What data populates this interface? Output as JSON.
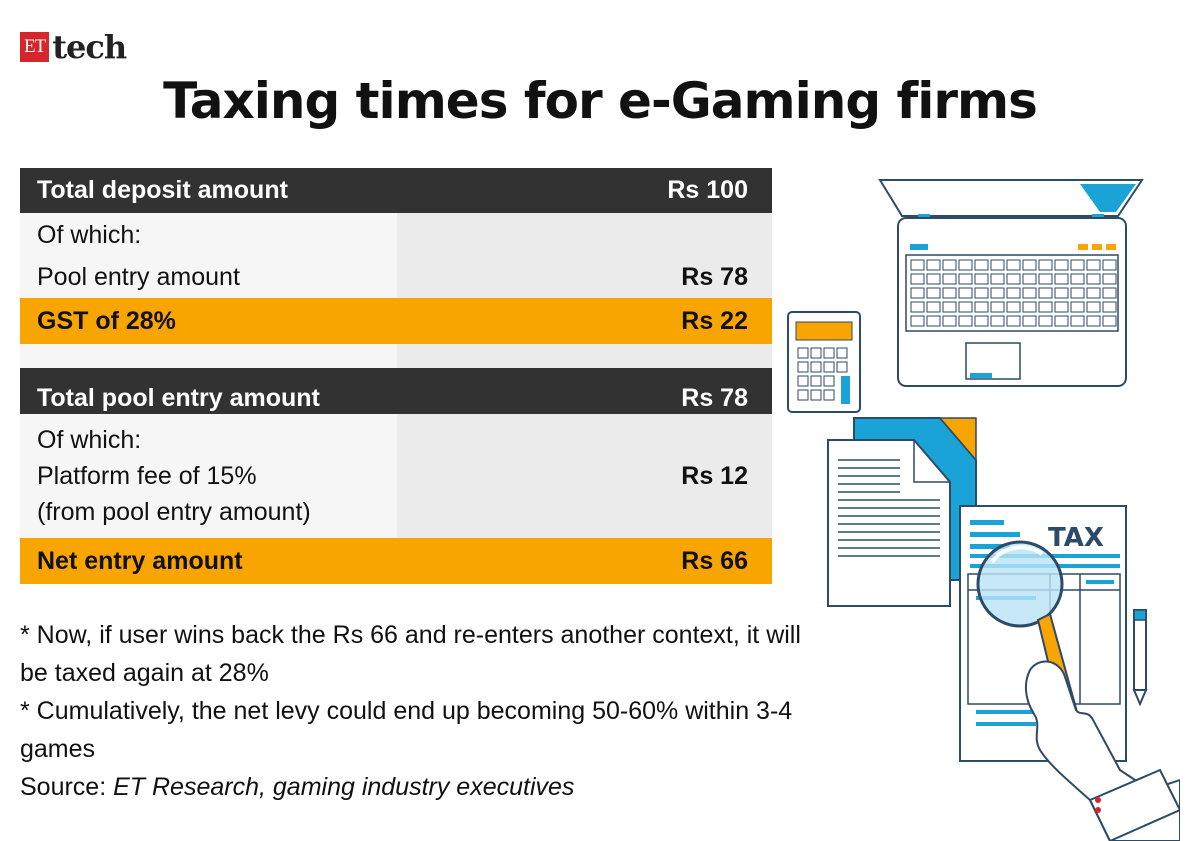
{
  "brand": {
    "prefix": "ET",
    "name": "tech"
  },
  "title": "Taxing times for e-Gaming firms",
  "table1": {
    "header": {
      "label": "Total deposit amount",
      "value": "Rs 100"
    },
    "of_which": "Of which:",
    "pool": {
      "label": "Pool entry amount",
      "value": "Rs 78"
    },
    "gst": {
      "label": "GST of 28%",
      "value": "Rs 22"
    }
  },
  "table2": {
    "header": {
      "label": "Total pool entry amount",
      "value": "Rs 78"
    },
    "platform": {
      "label": "Of which:\nPlatform fee of 15%\n(from pool entry amount)",
      "value": "Rs 12"
    },
    "net": {
      "label": "Net entry amount",
      "value": "Rs 66"
    }
  },
  "notes": {
    "note1": "* Now, if user wins back the Rs 66 and re-enters another context, it will be taxed again at 28%",
    "note2": "* Cumulatively, the net levy could end up becoming 50-60% within 3-4 games",
    "source_prefix": "Source: ",
    "source_text": "ET Research, gaming industry executives"
  },
  "illustration": {
    "tax_label": "TAX",
    "colors": {
      "blue": "#1aa3d6",
      "orange": "#f8a500",
      "line": "#2d4a66"
    },
    "icons": [
      "laptop-icon",
      "calculator-icon",
      "document-icon",
      "tax-form-icon",
      "magnifier-icon",
      "pencil-icon",
      "hand-icon"
    ]
  }
}
